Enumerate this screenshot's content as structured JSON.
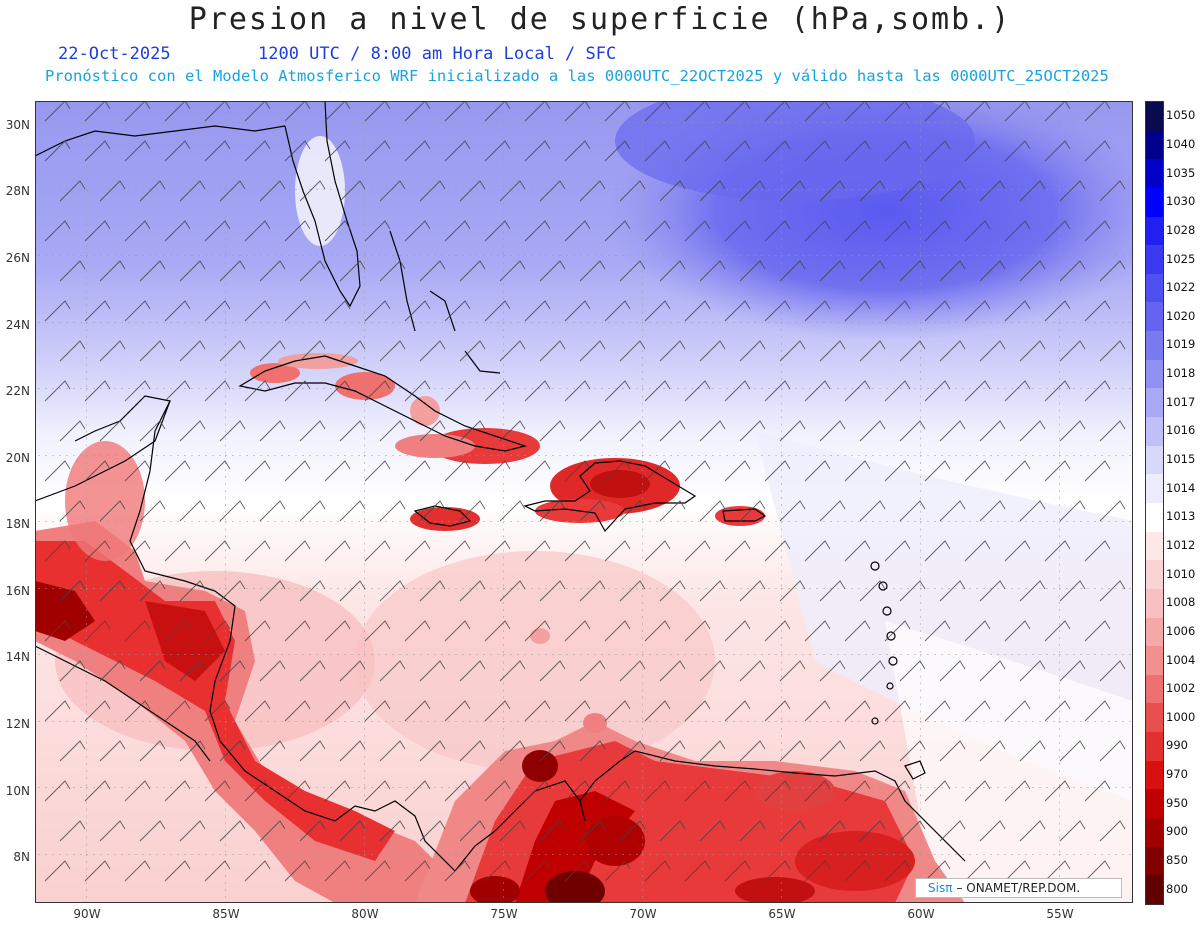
{
  "header": {
    "title": "Presion a nivel de superficie (hPa,somb.)",
    "date": "22-Oct-2025",
    "valid_time": "1200 UTC / 8:00 am Hora Local / SFC",
    "model_info": "Pronóstico con el Modelo Atmosferico WRF inicializado a las 0000UTC_22OCT2025 y válido hasta las  0000UTC_25OCT2025"
  },
  "axes": {
    "lat_labels": [
      "30N",
      "28N",
      "26N",
      "24N",
      "22N",
      "20N",
      "18N",
      "16N",
      "14N",
      "12N",
      "10N",
      "8N"
    ],
    "lon_labels": [
      "90W",
      "85W",
      "80W",
      "75W",
      "70W",
      "65W",
      "60W",
      "55W"
    ]
  },
  "colorbar": {
    "levels": [
      "1050",
      "1040",
      "1035",
      "1030",
      "1028",
      "1025",
      "1022",
      "1020",
      "1019",
      "1018",
      "1017",
      "1016",
      "1015",
      "1014",
      "1013",
      "1012",
      "1010",
      "1008",
      "1006",
      "1004",
      "1002",
      "1000",
      "990",
      "970",
      "950",
      "900",
      "850",
      "800"
    ],
    "colors": [
      "#0a0a50",
      "#00008b",
      "#0000c8",
      "#0000ff",
      "#2020f0",
      "#3a3af0",
      "#5050f0",
      "#6464f0",
      "#7a7af0",
      "#9090f0",
      "#a8a8f5",
      "#c0c0f8",
      "#d8d8fb",
      "#ececfd",
      "#ffffff",
      "#fde8e8",
      "#fad4d4",
      "#f8c0c0",
      "#f5a8a8",
      "#f29090",
      "#ee7070",
      "#e85050",
      "#e03030",
      "#d81010",
      "#c00000",
      "#a00000",
      "#800000",
      "#600000"
    ]
  },
  "credit": {
    "logo": "Sisπ",
    "text": "– ONAMET/REP.DOM."
  }
}
